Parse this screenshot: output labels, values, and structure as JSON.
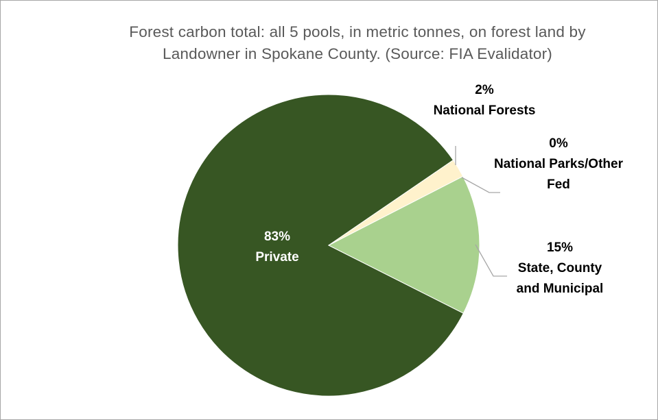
{
  "chart_data": {
    "type": "pie",
    "title": "Forest carbon total: all 5 pools, in metric tonnes, on forest land by Landowner in Spokane County. (Source: FIA Evalidator)",
    "categories": [
      "Private",
      "National Forests",
      "National Parks/Other Fed",
      "State, County and Municipal"
    ],
    "values": [
      83,
      2,
      0,
      15
    ],
    "value_labels": [
      "83%",
      "2%",
      "0%",
      "15%"
    ],
    "colors": [
      "#375623",
      "#fff2cc",
      "#e2efd9",
      "#a9d18e"
    ]
  }
}
